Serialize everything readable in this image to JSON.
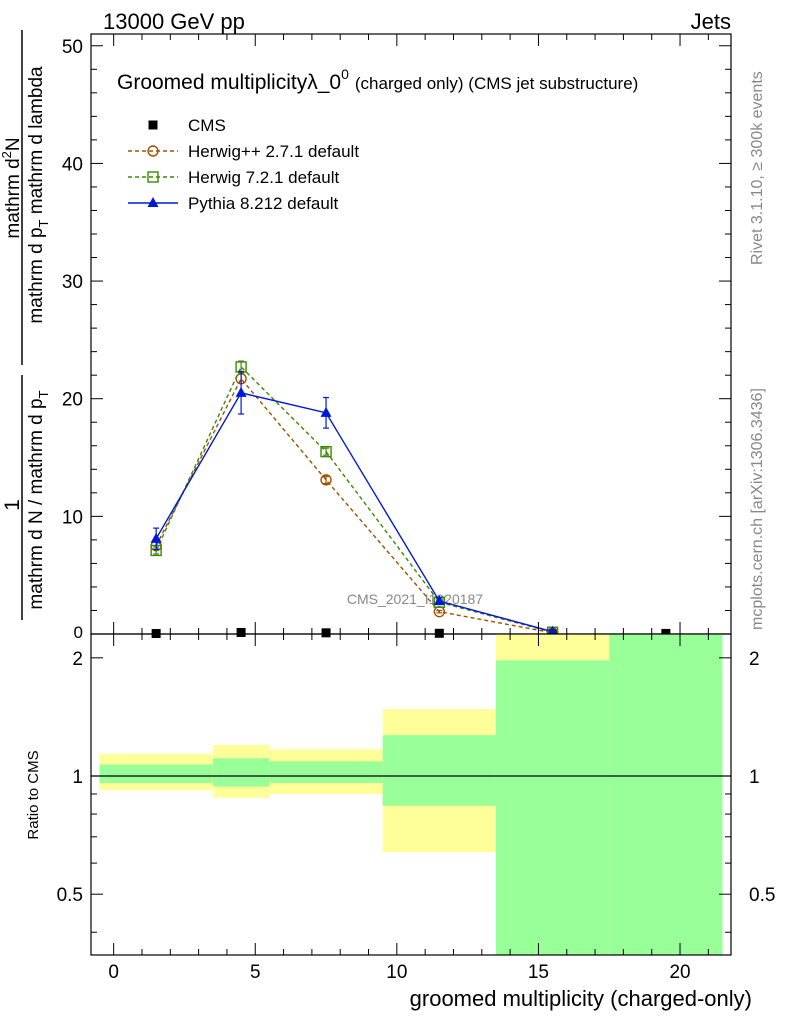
{
  "header": {
    "energy_label": "13000 GeV pp",
    "process_label": "Jets"
  },
  "side_text": {
    "rivet": "Rivet 3.1.10, ≥ 300k events",
    "mcplots": "mcplots.cern.ch [arXiv:1306.3436]"
  },
  "chart_data": {
    "type": "line",
    "title": "Groomed multiplicityλ_0⁰ (charged only) (CMS jet substructure)",
    "title_main": "Groomed multiplicityλ_0",
    "title_sup": "0",
    "title_sub": "(charged only) (CMS jet substructure)",
    "watermark": "CMS_2021_I1920187",
    "ylabel_numerator": "mathrm d²N",
    "ylabel_numerator_parts": [
      "mathrm d",
      "2",
      "N"
    ],
    "ylabel_denominator": "mathrm d p_T mathrm d lambda",
    "ylabel_denominator_parts": [
      "mathrm d p",
      "T",
      " mathrm d lambda"
    ],
    "ylabel_prefactor_numerator": "1",
    "ylabel_prefactor_denominator": "mathrm d N / mathrm d p_T",
    "ylabel_prefactor_denominator_parts": [
      "mathrm d N / mathrm d p",
      "T"
    ],
    "xlabel": "groomed multiplicity (charged-only)",
    "ratio_ylabel": "Ratio to CMS",
    "xlim": [
      -0.8,
      21.8
    ],
    "ylim": [
      0,
      51
    ],
    "ratio_ylim": [
      0.35,
      2.3
    ],
    "x_ticks": [
      0,
      5,
      10,
      15,
      20
    ],
    "y_ticks": [
      10,
      20,
      30,
      40,
      50
    ],
    "ratio_ticks": [
      0.5,
      1,
      2
    ],
    "legend_position": "top-left",
    "series": [
      {
        "name": "CMS",
        "style": "data",
        "color": "#000000",
        "marker": "filled-square",
        "x": [
          1.5,
          4.5,
          7.5,
          11.5,
          15.5,
          19.5
        ],
        "y": [
          0.04,
          0.13,
          0.1,
          0.06,
          0.02,
          0.05
        ]
      },
      {
        "name": "Herwig++ 2.7.1 default",
        "style": "dashed",
        "color": "#a05000",
        "marker": "open-circle",
        "x": [
          1.5,
          4.5,
          7.5,
          11.5,
          15.5
        ],
        "y": [
          7.5,
          21.7,
          13.1,
          1.9,
          0.1
        ],
        "yerr": [
          0.3,
          0.4,
          0.3,
          0.1,
          0.05
        ]
      },
      {
        "name": "Herwig 7.2.1 default",
        "style": "dashed",
        "color": "#3a8a00",
        "marker": "open-square",
        "x": [
          1.5,
          4.5,
          7.5,
          11.5,
          15.5
        ],
        "y": [
          7.1,
          22.7,
          15.5,
          2.7,
          0.15
        ],
        "yerr": [
          0.3,
          0.5,
          0.3,
          0.1,
          0.05
        ]
      },
      {
        "name": "Pythia 8.212 default",
        "style": "solid",
        "color": "#0018d8",
        "marker": "filled-triangle",
        "x": [
          1.5,
          4.5,
          7.5,
          11.5,
          15.5
        ],
        "y": [
          8.1,
          20.5,
          18.8,
          2.8,
          0.2
        ],
        "yerr": [
          0.9,
          1.8,
          1.3,
          0.3,
          0.05
        ]
      }
    ],
    "ratio_bands": [
      {
        "x": [
          -0.5,
          3.5
        ],
        "yellow": [
          0.92,
          1.14
        ],
        "green": [
          0.96,
          1.07
        ]
      },
      {
        "x": [
          3.5,
          5.5
        ],
        "yellow": [
          0.88,
          1.2
        ],
        "green": [
          0.94,
          1.11
        ]
      },
      {
        "x": [
          5.5,
          9.5
        ],
        "yellow": [
          0.9,
          1.17
        ],
        "green": [
          0.96,
          1.09
        ]
      },
      {
        "x": [
          9.5,
          13.5
        ],
        "yellow": [
          0.64,
          1.48
        ],
        "green": [
          0.84,
          1.27
        ]
      },
      {
        "x": [
          13.5,
          17.5
        ],
        "yellow": [
          0.35,
          2.3
        ],
        "green": [
          0.35,
          1.97
        ]
      },
      {
        "x": [
          17.5,
          21.5
        ],
        "yellow": [
          0.35,
          2.3
        ],
        "green": [
          0.35,
          2.3
        ]
      }
    ],
    "band_colors": {
      "yellow": "#ffff99",
      "green": "#99ff99"
    }
  }
}
